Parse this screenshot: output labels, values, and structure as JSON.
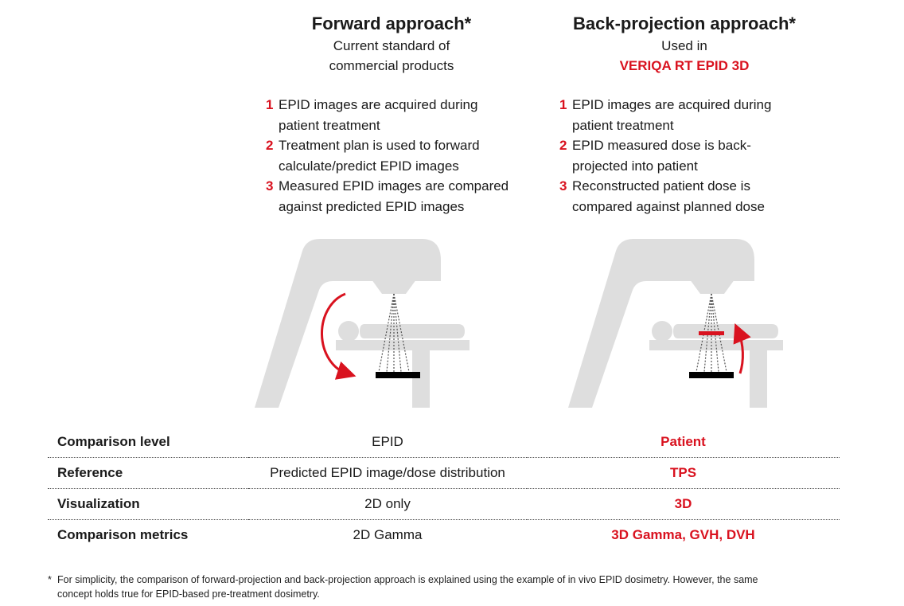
{
  "forward": {
    "title": "Forward approach*",
    "subtitle_lines": [
      "Current standard of",
      "commercial products"
    ],
    "steps": [
      {
        "num": "1",
        "lines": [
          "EPID images are acquired during",
          "patient treatment"
        ]
      },
      {
        "num": "2",
        "lines": [
          "Treatment plan is used to forward",
          "calculate/predict EPID images"
        ]
      },
      {
        "num": "3",
        "lines": [
          "Measured EPID images are compared",
          "against predicted EPID images"
        ]
      }
    ]
  },
  "back": {
    "title": "Back-projection approach*",
    "subtitle": "Used in",
    "product": "VERIQA RT EPID 3D",
    "steps": [
      {
        "num": "1",
        "lines": [
          "EPID images are acquired during",
          "patient treatment"
        ]
      },
      {
        "num": "2",
        "lines": [
          "EPID measured dose is back-",
          "projected into patient"
        ]
      },
      {
        "num": "3",
        "lines": [
          "Reconstructed patient dose is",
          "compared against planned dose"
        ]
      }
    ]
  },
  "comparison": [
    {
      "label": "Comparison level",
      "forward": "EPID",
      "back": "Patient"
    },
    {
      "label": "Reference",
      "forward": "Predicted EPID image/dose distribution",
      "back": "TPS"
    },
    {
      "label": "Visualization",
      "forward": "2D only",
      "back": "3D"
    },
    {
      "label": "Comparison metrics",
      "forward": "2D Gamma",
      "back": "3D Gamma, GVH, DVH"
    }
  ],
  "footnote": {
    "marker": "*",
    "lines": [
      "For simplicity, the comparison of forward-projection and back-projection approach is explained using the example of in vivo EPID dosimetry. However, the same",
      "concept holds true for EPID-based pre-treatment dosimetry."
    ]
  },
  "colors": {
    "accent": "#d9121f",
    "machine": "#dedede",
    "text": "#1a1a1a"
  },
  "icons": {
    "machine": "linac-gantry-icon",
    "patient": "patient-on-couch-icon",
    "detector": "epid-detector-icon",
    "forward_arrow": "curved-arrow-down-icon",
    "back_arrow": "curved-arrow-up-icon"
  }
}
